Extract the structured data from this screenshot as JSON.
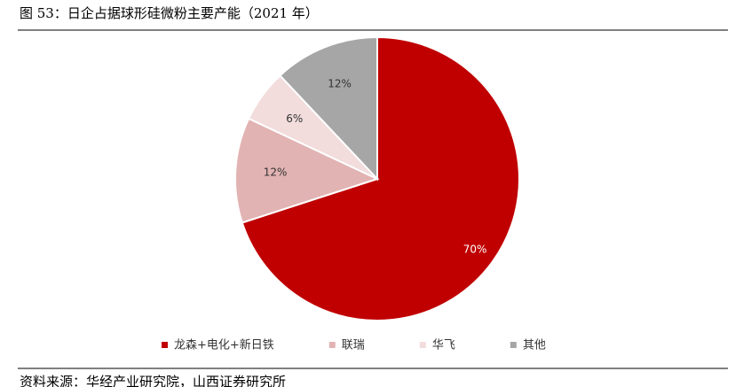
{
  "chart_data": {
    "type": "pie",
    "title": "图 53：日企占据球形硅微粉主要产能（2021 年）",
    "categories": [
      "龙森+电化+新日铁",
      "联瑞",
      "华飞",
      "其他"
    ],
    "values": [
      70,
      12,
      6,
      12
    ],
    "value_labels": [
      "70%",
      "12%",
      "6%",
      "12%"
    ],
    "colors": [
      "#c00000",
      "#e2b3b3",
      "#f2dcdc",
      "#a6a6a6"
    ],
    "legend": "bottom"
  },
  "source": "资料来源：华经产业研究院，山西证券研究所"
}
